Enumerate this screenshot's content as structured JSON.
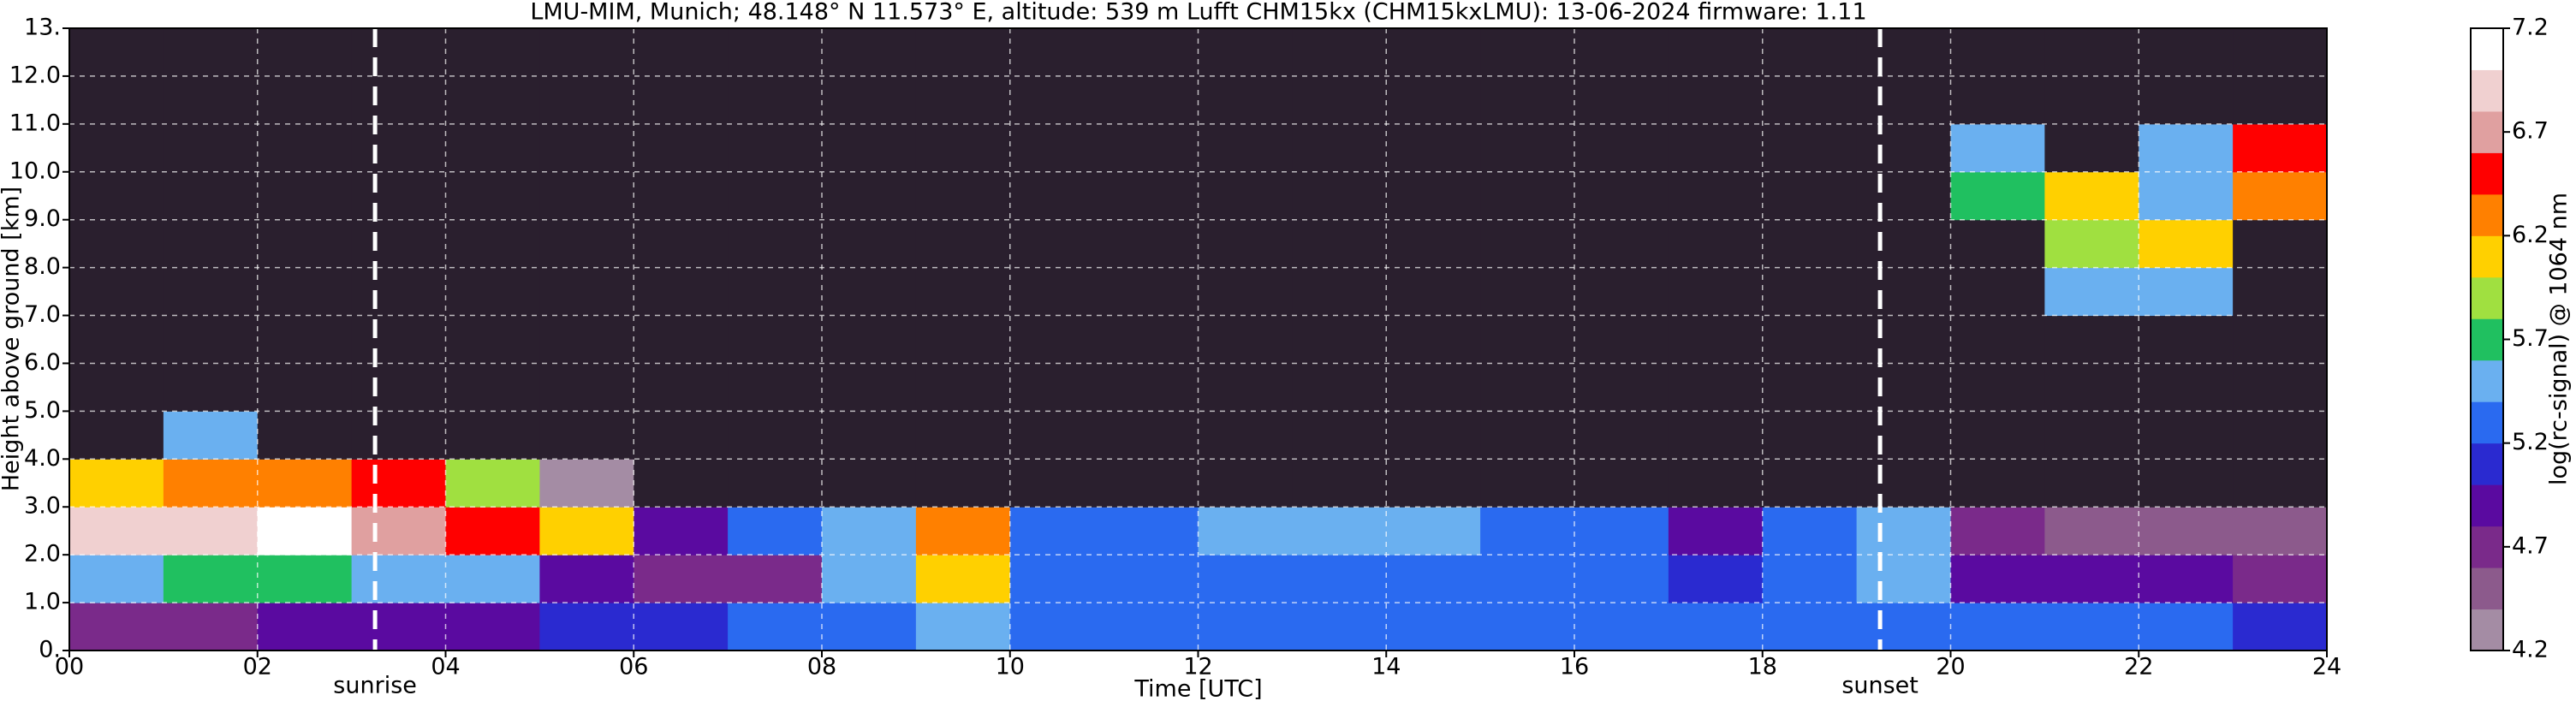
{
  "chart_data": {
    "type": "heatmap",
    "title": "LMU-MIM, Munich; 48.148° N 11.573° E, altitude: 539 m    Lufft CHM15kx (CHM15kxLMU): 13-06-2024    firmware: 1.11",
    "xlabel": "Time [UTC]",
    "ylabel": "Height above ground [km]",
    "colorbar_label": "log(rc-signal) @ 1064 nm",
    "xlim": [
      0,
      24
    ],
    "ylim": [
      0,
      13
    ],
    "xticks": [
      {
        "value": 0,
        "label": "00"
      },
      {
        "value": 2,
        "label": "02"
      },
      {
        "value": 4,
        "label": "04"
      },
      {
        "value": 6,
        "label": "06"
      },
      {
        "value": 8,
        "label": "08"
      },
      {
        "value": 10,
        "label": "10"
      },
      {
        "value": 12,
        "label": "12"
      },
      {
        "value": 14,
        "label": "14"
      },
      {
        "value": 16,
        "label": "16"
      },
      {
        "value": 18,
        "label": "18"
      },
      {
        "value": 20,
        "label": "20"
      },
      {
        "value": 22,
        "label": "22"
      },
      {
        "value": 24,
        "label": "24"
      }
    ],
    "yticks": [
      {
        "value": 0,
        "label": "0."
      },
      {
        "value": 1,
        "label": "1.0"
      },
      {
        "value": 2,
        "label": "2.0"
      },
      {
        "value": 3,
        "label": "3.0"
      },
      {
        "value": 4,
        "label": "4.0"
      },
      {
        "value": 5,
        "label": "5.0"
      },
      {
        "value": 6,
        "label": "6.0"
      },
      {
        "value": 7,
        "label": "7.0"
      },
      {
        "value": 8,
        "label": "8.0"
      },
      {
        "value": 9,
        "label": "9.0"
      },
      {
        "value": 10,
        "label": "10.0"
      },
      {
        "value": 11,
        "label": "11.0"
      },
      {
        "value": 12,
        "label": "12.0"
      },
      {
        "value": 13,
        "label": "13."
      }
    ],
    "clim": [
      4.2,
      7.2
    ],
    "cticks": [
      4.2,
      4.7,
      5.2,
      5.7,
      6.2,
      6.7,
      7.2
    ],
    "colormap": [
      "#a48ca4",
      "#8c5a8c",
      "#7a2a8a",
      "#5a0aa0",
      "#2a2ad0",
      "#2a6af0",
      "#6ab0f0",
      "#20c060",
      "#a0e040",
      "#ffd000",
      "#ff8000",
      "#ff0000",
      "#e0a0a0",
      "#f0d0d0",
      "#ffffff"
    ],
    "under_color": "#2a1f2e",
    "grid": true,
    "annotations": [
      {
        "text": "sunrise",
        "x": 3.25
      },
      {
        "text": "sunset",
        "x": 19.25
      }
    ],
    "x": [
      0.5,
      1.5,
      2.5,
      3.5,
      4.5,
      5.5,
      6.5,
      7.5,
      8.5,
      9.5,
      10.5,
      11.5,
      12.5,
      13.5,
      14.5,
      15.5,
      16.5,
      17.5,
      18.5,
      19.5,
      20.5,
      21.5,
      22.5,
      23.5
    ],
    "y": [
      0.5,
      1.5,
      2.5,
      3.5,
      4.5,
      5.5,
      6.5,
      7.5,
      8.5,
      9.5,
      10.5,
      11.5,
      12.5
    ],
    "z": [
      [
        4.8,
        4.8,
        4.9,
        5.0,
        5.0,
        5.1,
        5.1,
        5.2,
        5.2,
        5.4,
        5.2,
        5.2,
        5.2,
        5.2,
        5.2,
        5.2,
        5.2,
        5.2,
        5.2,
        5.3,
        5.2,
        5.2,
        5.2,
        5.1
      ],
      [
        5.6,
        5.8,
        5.7,
        5.6,
        5.5,
        4.9,
        4.8,
        4.8,
        5.5,
        6.1,
        5.3,
        5.2,
        5.2,
        5.2,
        5.3,
        5.2,
        5.2,
        5.1,
        5.2,
        5.4,
        5.0,
        5.0,
        4.9,
        4.8
      ],
      [
        7.0,
        7.0,
        7.1,
        6.8,
        6.4,
        6.0,
        4.9,
        5.3,
        5.6,
        6.3,
        5.2,
        5.3,
        5.4,
        5.4,
        5.5,
        5.3,
        5.2,
        5.0,
        5.2,
        5.6,
        4.7,
        4.6,
        4.6,
        4.5
      ],
      [
        6.1,
        6.2,
        6.3,
        6.6,
        5.9,
        4.3,
        4.0,
        4.0,
        4.0,
        4.0,
        4.0,
        4.0,
        4.0,
        4.0,
        4.0,
        4.0,
        4.0,
        4.0,
        4.0,
        4.0,
        4.0,
        4.0,
        4.0,
        4.0
      ],
      [
        4.0,
        5.6,
        4.0,
        4.0,
        4.0,
        4.0,
        4.0,
        4.0,
        4.0,
        4.0,
        4.0,
        4.0,
        4.0,
        4.0,
        4.0,
        4.0,
        4.0,
        4.0,
        4.0,
        4.0,
        4.0,
        4.0,
        4.0,
        4.0
      ],
      [
        4.0,
        4.0,
        4.0,
        4.0,
        4.0,
        4.0,
        4.0,
        4.0,
        4.0,
        4.0,
        4.0,
        4.0,
        4.0,
        4.0,
        4.0,
        4.0,
        4.0,
        4.0,
        4.0,
        4.0,
        4.0,
        4.0,
        4.0,
        4.0
      ],
      [
        4.0,
        4.0,
        4.0,
        4.0,
        4.0,
        4.0,
        4.0,
        4.0,
        4.0,
        4.0,
        4.0,
        4.0,
        4.0,
        4.0,
        4.0,
        4.0,
        4.0,
        4.0,
        4.0,
        4.0,
        4.0,
        4.0,
        4.0,
        4.0
      ],
      [
        4.0,
        4.0,
        4.0,
        4.0,
        4.0,
        4.0,
        4.0,
        4.0,
        4.0,
        4.0,
        4.0,
        4.0,
        4.0,
        4.0,
        4.0,
        4.0,
        4.0,
        4.0,
        4.0,
        4.0,
        4.0,
        5.5,
        5.6,
        4.0
      ],
      [
        4.0,
        4.0,
        4.0,
        4.0,
        4.0,
        4.0,
        4.0,
        4.0,
        4.0,
        4.0,
        4.0,
        4.0,
        4.0,
        4.0,
        4.0,
        4.0,
        4.0,
        4.0,
        4.0,
        4.0,
        4.0,
        5.9,
        6.1,
        4.0
      ],
      [
        4.0,
        4.0,
        4.0,
        4.0,
        4.0,
        4.0,
        4.0,
        4.0,
        4.0,
        4.0,
        4.0,
        4.0,
        4.0,
        4.0,
        4.0,
        4.0,
        4.0,
        4.0,
        4.0,
        4.0,
        5.8,
        6.0,
        5.6,
        6.3
      ],
      [
        4.0,
        4.0,
        4.0,
        4.0,
        4.0,
        4.0,
        4.0,
        4.0,
        4.0,
        4.0,
        4.0,
        4.0,
        4.0,
        4.0,
        4.0,
        4.0,
        4.0,
        4.0,
        4.0,
        4.0,
        5.5,
        4.0,
        5.4,
        6.4
      ],
      [
        4.0,
        4.0,
        4.0,
        4.0,
        4.0,
        4.0,
        4.0,
        4.0,
        4.0,
        4.0,
        4.0,
        4.0,
        4.0,
        4.0,
        4.0,
        4.0,
        4.0,
        4.0,
        4.0,
        4.0,
        4.0,
        4.0,
        4.0,
        4.0
      ],
      [
        4.0,
        4.0,
        4.0,
        4.0,
        4.0,
        4.0,
        4.0,
        4.0,
        4.0,
        4.0,
        4.0,
        4.0,
        4.0,
        4.0,
        4.0,
        4.0,
        4.0,
        4.0,
        4.0,
        4.0,
        4.0,
        4.0,
        4.0,
        4.0
      ]
    ]
  }
}
